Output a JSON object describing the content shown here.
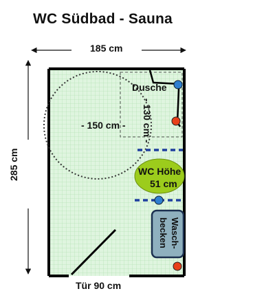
{
  "title": "WC Südbad - Sauna",
  "dimensions": {
    "width_label": "185 cm",
    "height_label": "285 cm",
    "turning_circle_label": "- 150 cm -",
    "shower_depth_label": "- 130 cm -",
    "door_label": "Tür 90 cm"
  },
  "fixtures": {
    "shower_label": "Dusche",
    "wc_label_line1": "WC Höhe",
    "wc_label_line2": "51 cm",
    "sink_label_line1": "Wasch-",
    "sink_label_line2": "becken"
  },
  "colors": {
    "floor_fill": "#dff5df",
    "grid": "#b6e2b6",
    "wall": "#000000",
    "wc_fill": "#9ccc1c",
    "sink_fill": "#8fb0be",
    "grab_bar": "#1f3f9f",
    "marker_blue": "#2f7fd0",
    "marker_red": "#e8401a"
  }
}
